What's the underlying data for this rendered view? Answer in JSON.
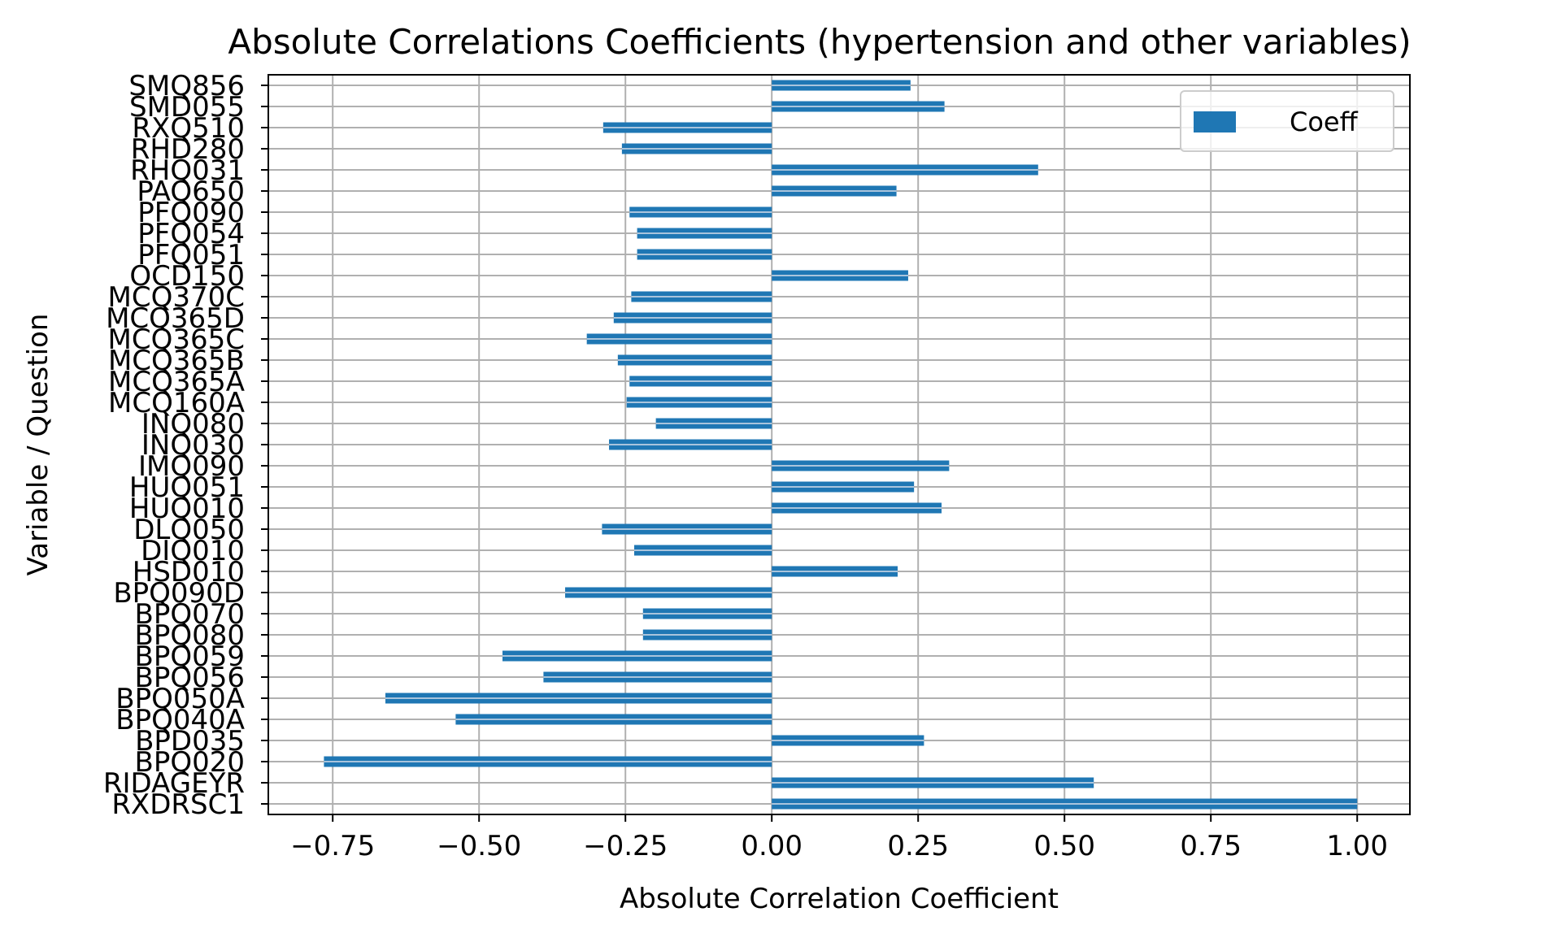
{
  "chart_data": {
    "type": "bar",
    "orientation": "horizontal",
    "title": "Absolute Correlations Coefficients (hypertension and other variables)",
    "xlabel": "Absolute Correlation Coefficient",
    "ylabel": "Variable / Question",
    "xlim": [
      -0.86,
      1.09
    ],
    "xticks": [
      -0.75,
      -0.5,
      -0.25,
      0.0,
      0.25,
      0.5,
      0.75,
      1.0
    ],
    "xtick_labels": [
      "−0.75",
      "−0.50",
      "−0.25",
      "0.00",
      "0.25",
      "0.50",
      "0.75",
      "1.00"
    ],
    "grid": true,
    "legend": {
      "position": "top-right"
    },
    "colors": {
      "bar": "#1f77b4",
      "grid": "#b0b0b0",
      "bar_stripe": "#a9c4dc"
    },
    "categories": [
      "RXDRSC1",
      "RIDAGEYR",
      "BPQ020",
      "BPD035",
      "BPQ040A",
      "BPQ050A",
      "BPQ056",
      "BPQ059",
      "BPQ080",
      "BPQ070",
      "BPQ090D",
      "HSD010",
      "DIQ010",
      "DLQ050",
      "HUQ010",
      "HUQ051",
      "IMQ090",
      "INQ030",
      "INQ080",
      "MCQ160A",
      "MCQ365A",
      "MCQ365B",
      "MCQ365C",
      "MCQ365D",
      "MCQ370C",
      "OCD150",
      "PFQ051",
      "PFQ054",
      "PFQ090",
      "PAQ650",
      "RHQ031",
      "RHD280",
      "RXQ510",
      "SMD055",
      "SMQ856"
    ],
    "series": [
      {
        "name": "Coeff",
        "values": [
          1.0,
          0.55,
          -0.765,
          0.26,
          -0.54,
          -0.66,
          -0.39,
          -0.46,
          -0.22,
          -0.22,
          -0.353,
          0.215,
          -0.235,
          -0.29,
          0.29,
          0.243,
          0.303,
          -0.278,
          -0.198,
          -0.248,
          -0.243,
          -0.263,
          -0.316,
          -0.27,
          -0.24,
          0.233,
          -0.23,
          -0.23,
          -0.243,
          0.213,
          0.455,
          -0.256,
          -0.288,
          0.295,
          0.237
        ]
      }
    ]
  }
}
